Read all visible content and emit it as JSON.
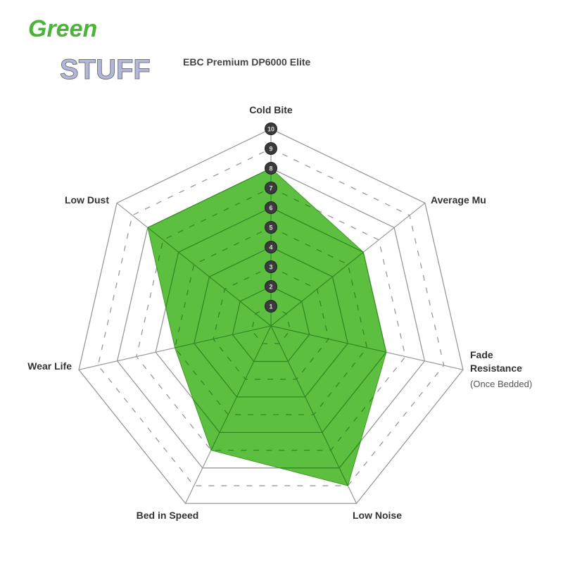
{
  "logo": {
    "line1": "Green",
    "line2": "STUFF"
  },
  "chart_data": {
    "type": "radar",
    "title": "EBC Premium DP6000 Elite",
    "axes": [
      {
        "label": "Cold Bite",
        "sub": ""
      },
      {
        "label": "Average Mu",
        "sub": ""
      },
      {
        "label": "Fade Resistance",
        "sub": "(Once Bedded)"
      },
      {
        "label": "Low Noise",
        "sub": ""
      },
      {
        "label": "Bed in Speed",
        "sub": ""
      },
      {
        "label": "Wear Life",
        "sub": ""
      },
      {
        "label": "Low Dust",
        "sub": ""
      }
    ],
    "values": [
      8,
      6,
      6,
      9,
      7,
      5,
      8
    ],
    "scale_ticks": [
      "1",
      "2",
      "3",
      "4",
      "5",
      "6",
      "7",
      "8",
      "9",
      "10"
    ],
    "range": [
      0,
      10
    ],
    "fill_color": "#5cbf3f",
    "grid": true
  }
}
